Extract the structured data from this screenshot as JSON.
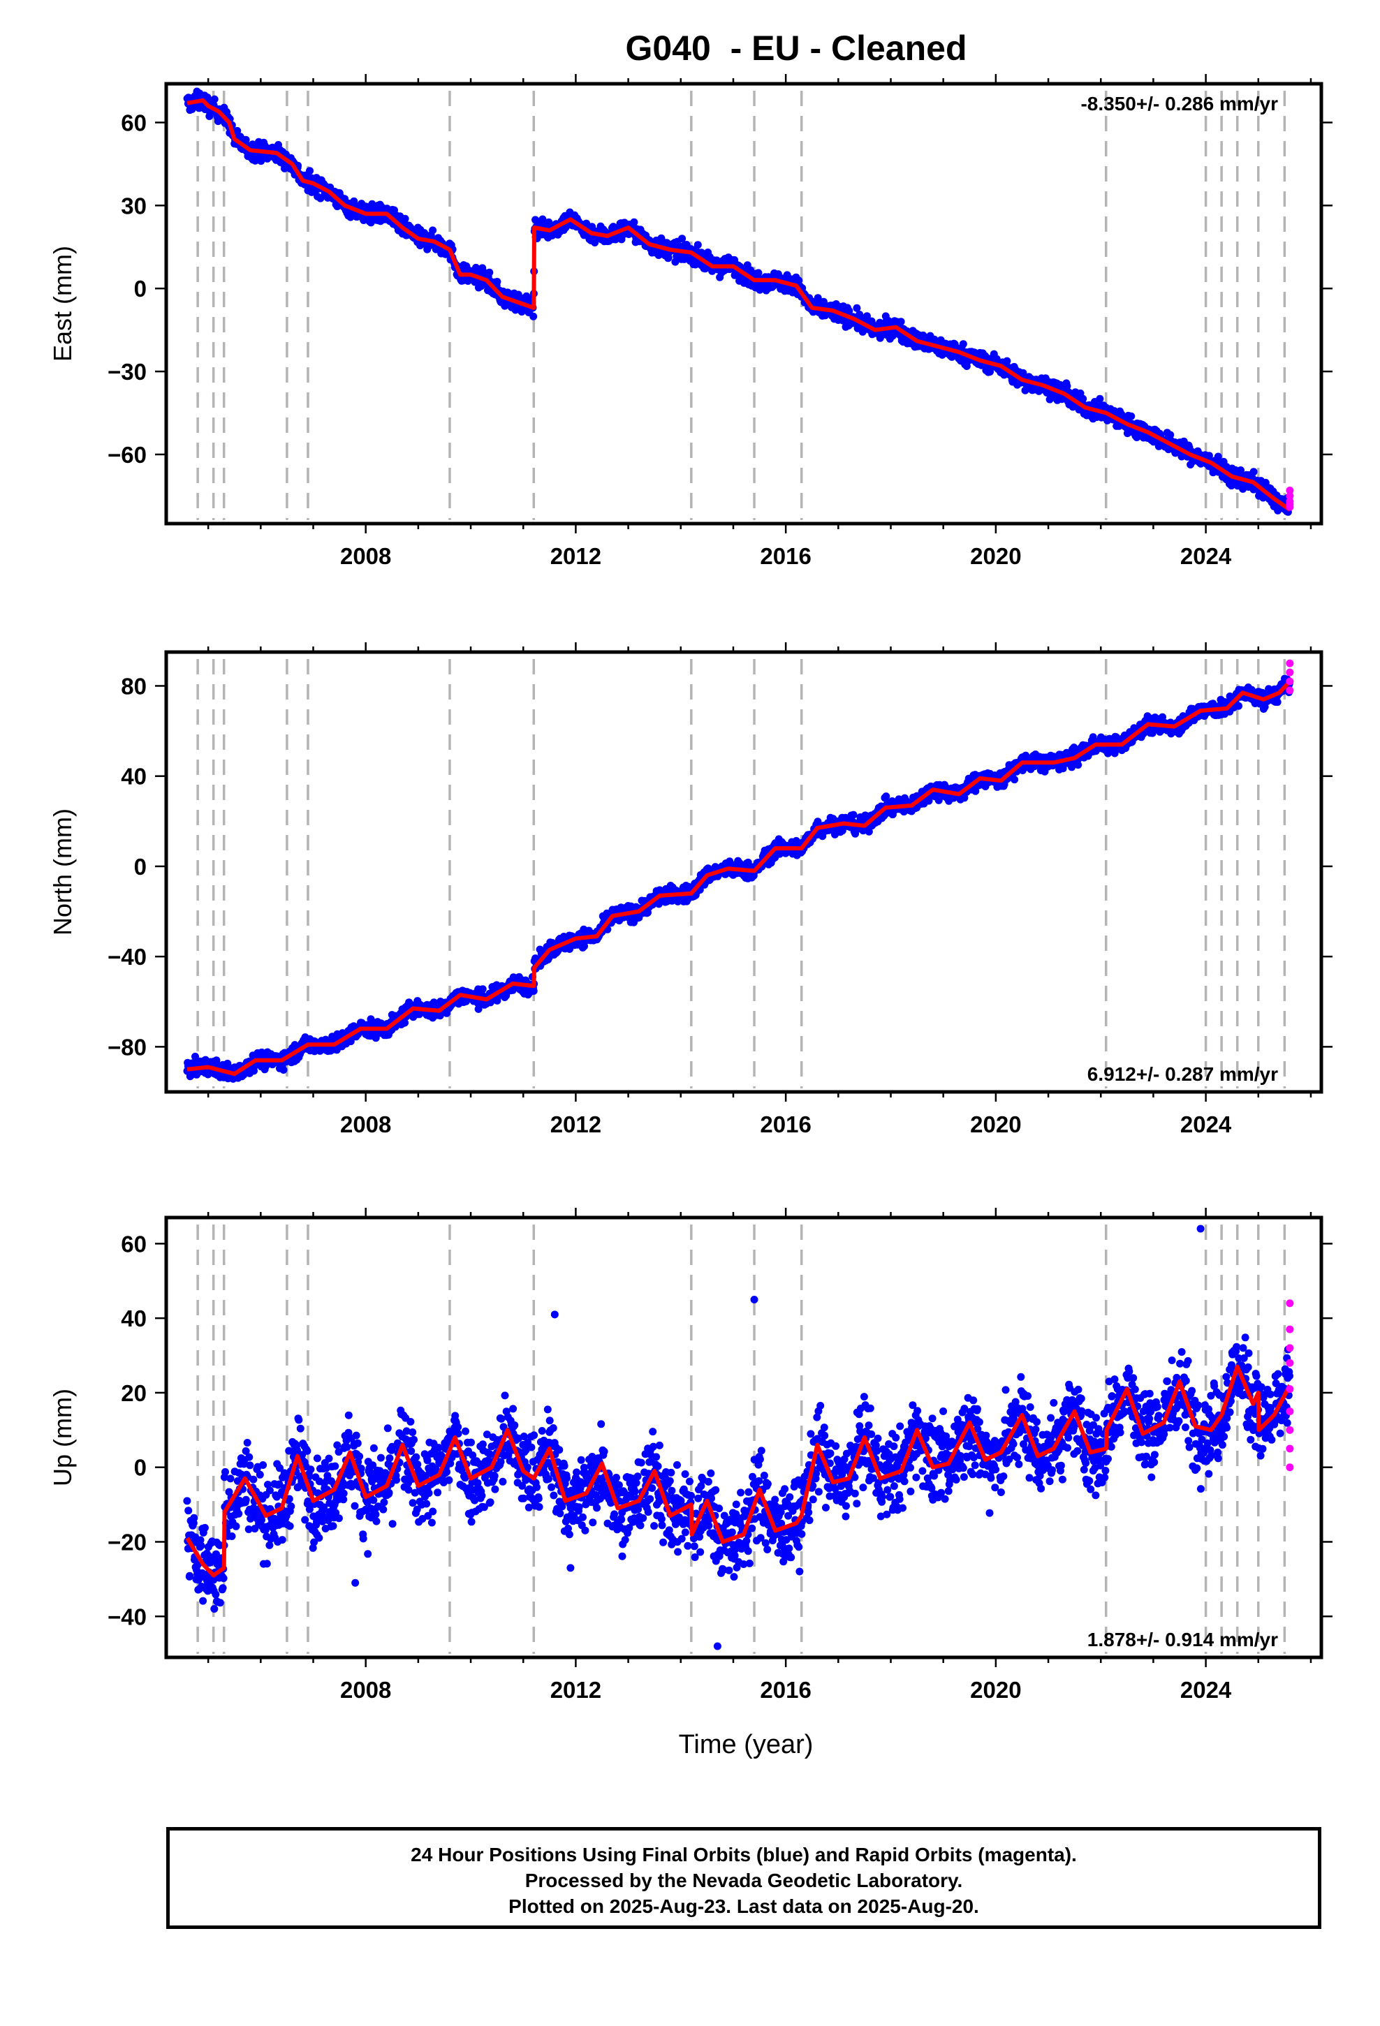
{
  "title": "G040  - EU - Cleaned",
  "colors": {
    "final_orbits": "#0000ff",
    "rapid_orbits": "#ff00ff",
    "model": "#ff0000",
    "event_lines": "#b4b4b4"
  },
  "xlabel": "Time (year)",
  "footer": {
    "line1": "24 Hour Positions Using Final Orbits (blue) and Rapid Orbits (magenta).",
    "line2": "Processed by the Nevada Geodetic Laboratory.",
    "line3": "Plotted on 2025-Aug-23. Last data on 2025-Aug-20."
  },
  "chart_data": [
    {
      "type": "scatter",
      "id": "east",
      "ylabel": "East (mm)",
      "rate_text": "-8.350+/- 0.286 mm/yr",
      "xlim": [
        2004.2,
        2026.2
      ],
      "ylim": [
        -85,
        74
      ],
      "xticks": [
        2008,
        2012,
        2016,
        2020,
        2024
      ],
      "yticks": [
        60,
        30,
        0,
        -30,
        -60
      ],
      "ytick_labels": [
        "60",
        "30",
        "0",
        "−30",
        "−60"
      ],
      "event_lines": [
        2004.8,
        2005.1,
        2005.3,
        2006.5,
        2006.9,
        2009.6,
        2011.2,
        2014.2,
        2015.4,
        2016.3,
        2022.1,
        2024.0,
        2024.3,
        2024.6,
        2025.0,
        2025.5
      ],
      "model": [
        [
          2004.6,
          67
        ],
        [
          2004.9,
          68
        ],
        [
          2005.0,
          66
        ],
        [
          2005.2,
          64
        ],
        [
          2005.4,
          60
        ],
        [
          2005.5,
          54
        ],
        [
          2005.8,
          50
        ],
        [
          2006.3,
          49
        ],
        [
          2006.6,
          45
        ],
        [
          2006.8,
          39
        ],
        [
          2007.0,
          38
        ],
        [
          2007.3,
          35
        ],
        [
          2007.6,
          30
        ],
        [
          2008.0,
          27
        ],
        [
          2008.4,
          27
        ],
        [
          2008.7,
          22
        ],
        [
          2009.0,
          18
        ],
        [
          2009.3,
          17
        ],
        [
          2009.6,
          14
        ],
        [
          2009.8,
          5
        ],
        [
          2010.0,
          5
        ],
        [
          2010.3,
          3
        ],
        [
          2010.6,
          -3
        ],
        [
          2010.9,
          -5
        ],
        [
          2011.2,
          -7
        ],
        [
          2011.21,
          22
        ],
        [
          2011.5,
          21
        ],
        [
          2011.9,
          25
        ],
        [
          2012.3,
          20
        ],
        [
          2012.6,
          19
        ],
        [
          2013.0,
          22
        ],
        [
          2013.4,
          16
        ],
        [
          2013.8,
          14
        ],
        [
          2014.2,
          13
        ],
        [
          2014.6,
          8
        ],
        [
          2015.0,
          8
        ],
        [
          2015.4,
          3
        ],
        [
          2015.8,
          3
        ],
        [
          2016.2,
          1
        ],
        [
          2016.5,
          -7
        ],
        [
          2016.9,
          -8
        ],
        [
          2017.3,
          -11
        ],
        [
          2017.7,
          -15
        ],
        [
          2018.1,
          -14
        ],
        [
          2018.5,
          -19
        ],
        [
          2018.9,
          -21
        ],
        [
          2019.3,
          -23
        ],
        [
          2019.7,
          -26
        ],
        [
          2020.1,
          -28
        ],
        [
          2020.5,
          -33
        ],
        [
          2020.9,
          -35
        ],
        [
          2021.3,
          -38
        ],
        [
          2021.7,
          -43
        ],
        [
          2022.1,
          -45
        ],
        [
          2022.5,
          -49
        ],
        [
          2022.9,
          -52
        ],
        [
          2023.3,
          -56
        ],
        [
          2023.7,
          -60
        ],
        [
          2024.1,
          -63
        ],
        [
          2024.5,
          -68
        ],
        [
          2024.9,
          -70
        ],
        [
          2025.3,
          -76
        ],
        [
          2025.6,
          -80
        ]
      ],
      "rapid": [
        [
          2025.6,
          -73
        ],
        [
          2025.6,
          -75
        ],
        [
          2025.6,
          -77
        ],
        [
          2025.6,
          -78
        ],
        [
          2025.6,
          -79
        ]
      ]
    },
    {
      "type": "scatter",
      "id": "north",
      "ylabel": "North (mm)",
      "rate_text": "6.912+/- 0.287 mm/yr",
      "xlim": [
        2004.2,
        2026.2
      ],
      "ylim": [
        -100,
        95
      ],
      "xticks": [
        2008,
        2012,
        2016,
        2020,
        2024
      ],
      "yticks": [
        80,
        40,
        0,
        -40,
        -80
      ],
      "ytick_labels": [
        "80",
        "40",
        "0",
        "−40",
        "−80"
      ],
      "event_lines": [
        2004.8,
        2005.1,
        2005.3,
        2006.5,
        2006.9,
        2009.6,
        2011.2,
        2014.2,
        2015.4,
        2016.3,
        2022.1,
        2024.0,
        2024.3,
        2024.6,
        2025.0,
        2025.5
      ],
      "model": [
        [
          2004.6,
          -90
        ],
        [
          2005.0,
          -89
        ],
        [
          2005.5,
          -92
        ],
        [
          2005.9,
          -86
        ],
        [
          2006.4,
          -86
        ],
        [
          2006.9,
          -79
        ],
        [
          2007.4,
          -79
        ],
        [
          2007.9,
          -72
        ],
        [
          2008.4,
          -72
        ],
        [
          2008.9,
          -63
        ],
        [
          2009.4,
          -64
        ],
        [
          2009.8,
          -57
        ],
        [
          2010.3,
          -59
        ],
        [
          2010.8,
          -52
        ],
        [
          2011.2,
          -53
        ],
        [
          2011.21,
          -45
        ],
        [
          2011.5,
          -37
        ],
        [
          2012.0,
          -32
        ],
        [
          2012.4,
          -31
        ],
        [
          2012.7,
          -22
        ],
        [
          2013.2,
          -20
        ],
        [
          2013.6,
          -13
        ],
        [
          2014.2,
          -12
        ],
        [
          2014.5,
          -4
        ],
        [
          2014.9,
          -1
        ],
        [
          2015.4,
          -2
        ],
        [
          2015.8,
          8
        ],
        [
          2016.3,
          8
        ],
        [
          2016.6,
          17
        ],
        [
          2017.1,
          19
        ],
        [
          2017.5,
          18
        ],
        [
          2017.9,
          26
        ],
        [
          2018.4,
          27
        ],
        [
          2018.8,
          34
        ],
        [
          2019.3,
          32
        ],
        [
          2019.7,
          39
        ],
        [
          2020.1,
          38
        ],
        [
          2020.5,
          46
        ],
        [
          2021.1,
          46
        ],
        [
          2021.5,
          48
        ],
        [
          2021.9,
          54
        ],
        [
          2022.4,
          54
        ],
        [
          2022.9,
          63
        ],
        [
          2023.4,
          62
        ],
        [
          2023.9,
          69
        ],
        [
          2024.4,
          70
        ],
        [
          2024.7,
          77
        ],
        [
          2025.1,
          74
        ],
        [
          2025.4,
          77
        ],
        [
          2025.6,
          82
        ]
      ],
      "rapid": [
        [
          2025.6,
          78
        ],
        [
          2025.6,
          82
        ],
        [
          2025.6,
          86
        ],
        [
          2025.6,
          90
        ]
      ]
    },
    {
      "type": "scatter",
      "id": "up",
      "ylabel": "Up (mm)",
      "rate_text": "1.878+/- 0.914 mm/yr",
      "xlim": [
        2004.2,
        2026.2
      ],
      "ylim": [
        -51,
        67
      ],
      "xticks": [
        2008,
        2012,
        2016,
        2020,
        2024
      ],
      "yticks": [
        60,
        40,
        20,
        0,
        -20,
        -40
      ],
      "ytick_labels": [
        "60",
        "40",
        "20",
        "0",
        "−20",
        "−40"
      ],
      "event_lines": [
        2004.8,
        2005.1,
        2005.3,
        2006.5,
        2006.9,
        2009.6,
        2011.2,
        2014.2,
        2015.4,
        2016.3,
        2022.1,
        2024.0,
        2024.3,
        2024.6,
        2025.0,
        2025.5
      ],
      "model": [
        [
          2004.6,
          -19
        ],
        [
          2004.9,
          -26
        ],
        [
          2005.1,
          -29
        ],
        [
          2005.3,
          -27
        ],
        [
          2005.31,
          -12
        ],
        [
          2005.7,
          -3
        ],
        [
          2006.1,
          -13
        ],
        [
          2006.4,
          -11
        ],
        [
          2006.7,
          3
        ],
        [
          2007.0,
          -9
        ],
        [
          2007.4,
          -6
        ],
        [
          2007.7,
          4
        ],
        [
          2008.0,
          -8
        ],
        [
          2008.4,
          -5
        ],
        [
          2008.7,
          6
        ],
        [
          2009.0,
          -5
        ],
        [
          2009.4,
          -2
        ],
        [
          2009.7,
          8
        ],
        [
          2010.0,
          -3
        ],
        [
          2010.4,
          0
        ],
        [
          2010.7,
          10
        ],
        [
          2011.0,
          -1
        ],
        [
          2011.2,
          -3
        ],
        [
          2011.5,
          5
        ],
        [
          2011.8,
          -9
        ],
        [
          2012.2,
          -7
        ],
        [
          2012.5,
          1
        ],
        [
          2012.8,
          -11
        ],
        [
          2013.2,
          -9
        ],
        [
          2013.5,
          -1
        ],
        [
          2013.8,
          -13
        ],
        [
          2014.2,
          -10
        ],
        [
          2014.21,
          -18
        ],
        [
          2014.5,
          -9
        ],
        [
          2014.8,
          -20
        ],
        [
          2015.2,
          -18
        ],
        [
          2015.5,
          -6
        ],
        [
          2015.8,
          -17
        ],
        [
          2016.2,
          -15
        ],
        [
          2016.3,
          -13
        ],
        [
          2016.6,
          6
        ],
        [
          2016.9,
          -4
        ],
        [
          2017.2,
          -3
        ],
        [
          2017.5,
          8
        ],
        [
          2017.8,
          -3
        ],
        [
          2018.2,
          -1
        ],
        [
          2018.5,
          10
        ],
        [
          2018.8,
          0
        ],
        [
          2019.1,
          1
        ],
        [
          2019.5,
          12
        ],
        [
          2019.8,
          2
        ],
        [
          2020.1,
          4
        ],
        [
          2020.5,
          14
        ],
        [
          2020.8,
          3
        ],
        [
          2021.1,
          5
        ],
        [
          2021.5,
          15
        ],
        [
          2021.8,
          4
        ],
        [
          2022.1,
          5
        ],
        [
          2022.11,
          10
        ],
        [
          2022.5,
          21
        ],
        [
          2022.8,
          9
        ],
        [
          2023.2,
          12
        ],
        [
          2023.5,
          23
        ],
        [
          2023.8,
          11
        ],
        [
          2024.1,
          10
        ],
        [
          2024.3,
          14
        ],
        [
          2024.6,
          27
        ],
        [
          2024.9,
          17
        ],
        [
          2025.0,
          20
        ],
        [
          2025.01,
          10
        ],
        [
          2025.3,
          14
        ],
        [
          2025.6,
          22
        ]
      ],
      "outliers": [
        [
          2023.9,
          64
        ],
        [
          2015.4,
          45
        ],
        [
          2014.7,
          -48
        ],
        [
          2011.6,
          41
        ],
        [
          2007.8,
          -31
        ],
        [
          2011.9,
          -27
        ]
      ],
      "rapid": [
        [
          2025.6,
          44
        ],
        [
          2025.6,
          37
        ],
        [
          2025.6,
          32
        ],
        [
          2025.6,
          28
        ],
        [
          2025.6,
          21
        ],
        [
          2025.6,
          15
        ],
        [
          2025.6,
          10
        ],
        [
          2025.6,
          5
        ],
        [
          2025.6,
          0
        ]
      ]
    }
  ]
}
